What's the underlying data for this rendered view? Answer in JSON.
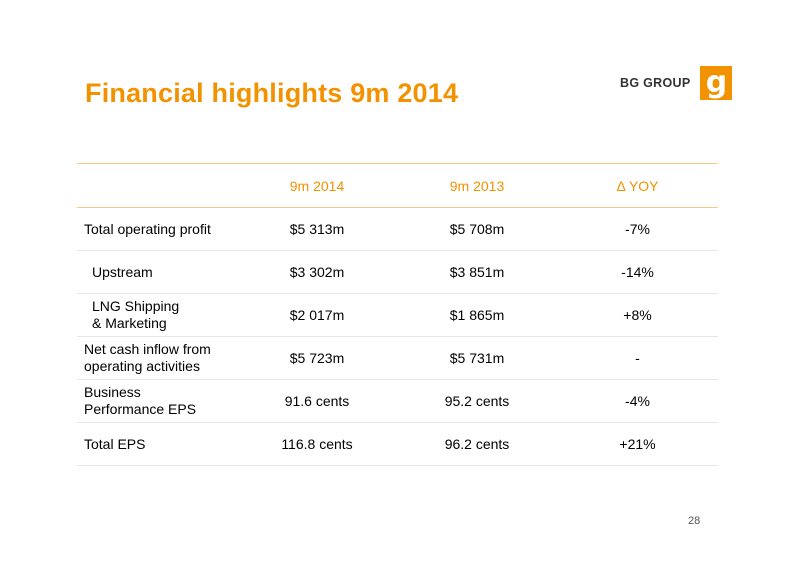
{
  "slide": {
    "title": "Financial highlights 9m 2014",
    "page_number": "28"
  },
  "logo": {
    "text": "BG GROUP",
    "mark": "g",
    "color": "#f39200"
  },
  "table": {
    "headers": [
      "",
      "9m 2014",
      "9m 2013",
      "Δ YOY"
    ],
    "rows": [
      {
        "label_line1": "Total operating profit",
        "label_line2": "",
        "v2014": "$5 313m",
        "v2013": "$5 708m",
        "yoy": "-7%"
      },
      {
        "label_line1": "Upstream",
        "label_line2": "",
        "v2014": "$3 302m",
        "v2013": "$3 851m",
        "yoy": "-14%"
      },
      {
        "label_line1": "LNG Shipping",
        "label_line2": "& Marketing",
        "v2014": "$2 017m",
        "v2013": "$1 865m",
        "yoy": "+8%"
      },
      {
        "label_line1": "Net cash inflow from",
        "label_line2": "operating activities",
        "v2014": "$5 723m",
        "v2013": "$5 731m",
        "yoy": "-"
      },
      {
        "label_line1": "Business",
        "label_line2": "Performance EPS",
        "v2014": "91.6 cents",
        "v2013": "95.2 cents",
        "yoy": "-4%"
      },
      {
        "label_line1": "Total EPS",
        "label_line2": "",
        "v2014": "116.8 cents",
        "v2013": "96.2 cents",
        "yoy": "+21%"
      }
    ]
  },
  "colors": {
    "accent": "#f39200"
  }
}
